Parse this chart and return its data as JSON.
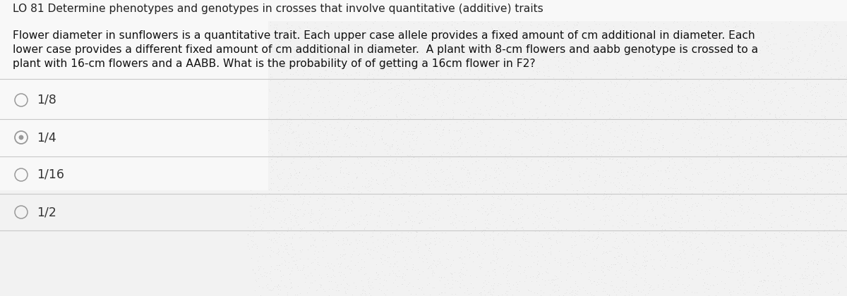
{
  "title": "LO 81 Determine phenotypes and genotypes in crosses that involve quantitative (additive) traits",
  "body_lines": [
    "Flower diameter in sunflowers is a quantitative trait. Each upper case allele provides a fixed amount of cm additional in diameter. Each",
    "lower case provides a different fixed amount of cm additional in diameter.  A plant with 8-cm flowers and aabb genotype is crossed to a",
    "plant with 16-cm flowers and a AABB. What is the probability of of getting a 16cm flower in F2?"
  ],
  "options": [
    "1/8",
    "1/4",
    "1/16",
    "1/2"
  ],
  "selected_option": "1/4",
  "bg_color": "#e8e8e8",
  "text_area_bg": "#f5f5f5",
  "title_color": "#222222",
  "body_color": "#111111",
  "option_color": "#333333",
  "circle_color": "#999999",
  "divider_color": "#c8c8c8",
  "title_fontsize": 11.2,
  "body_fontsize": 11.2,
  "option_fontsize": 12.5
}
